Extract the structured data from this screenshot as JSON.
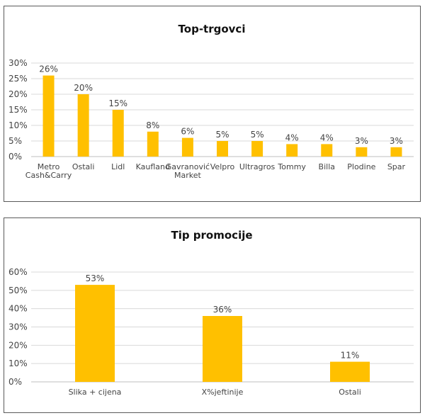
{
  "chart_data": [
    {
      "type": "bar",
      "title": "Top-trgovci",
      "categories": [
        "Metro\nCash&Carry",
        "Ostali",
        "Lidl",
        "Kaufland",
        "Gavranović\nMarket",
        "Velpro",
        "Ultragros",
        "Tommy",
        "Billa",
        "Plodine",
        "Spar"
      ],
      "values": [
        26,
        20,
        15,
        8,
        6,
        5,
        5,
        4,
        4,
        3,
        3
      ],
      "value_labels": [
        "26%",
        "20%",
        "15%",
        "8%",
        "6%",
        "5%",
        "5%",
        "4%",
        "4%",
        "3%",
        "3%"
      ],
      "ylim": [
        0,
        30
      ],
      "yticks": [
        "0%",
        "5%",
        "10%",
        "15%",
        "20%",
        "25%",
        "30%"
      ],
      "grid": true,
      "bar_color": "#FFC000"
    },
    {
      "type": "bar",
      "title": "Tip promocije",
      "categories": [
        "Slika + cijena",
        "X%jeftinije",
        "Ostali"
      ],
      "values": [
        53,
        36,
        11
      ],
      "value_labels": [
        "53%",
        "36%",
        "11%"
      ],
      "ylim": [
        0,
        60
      ],
      "yticks": [
        "0%",
        "10%",
        "20%",
        "30%",
        "40%",
        "50%",
        "60%"
      ],
      "grid": true,
      "bar_color": "#FFC000"
    }
  ]
}
